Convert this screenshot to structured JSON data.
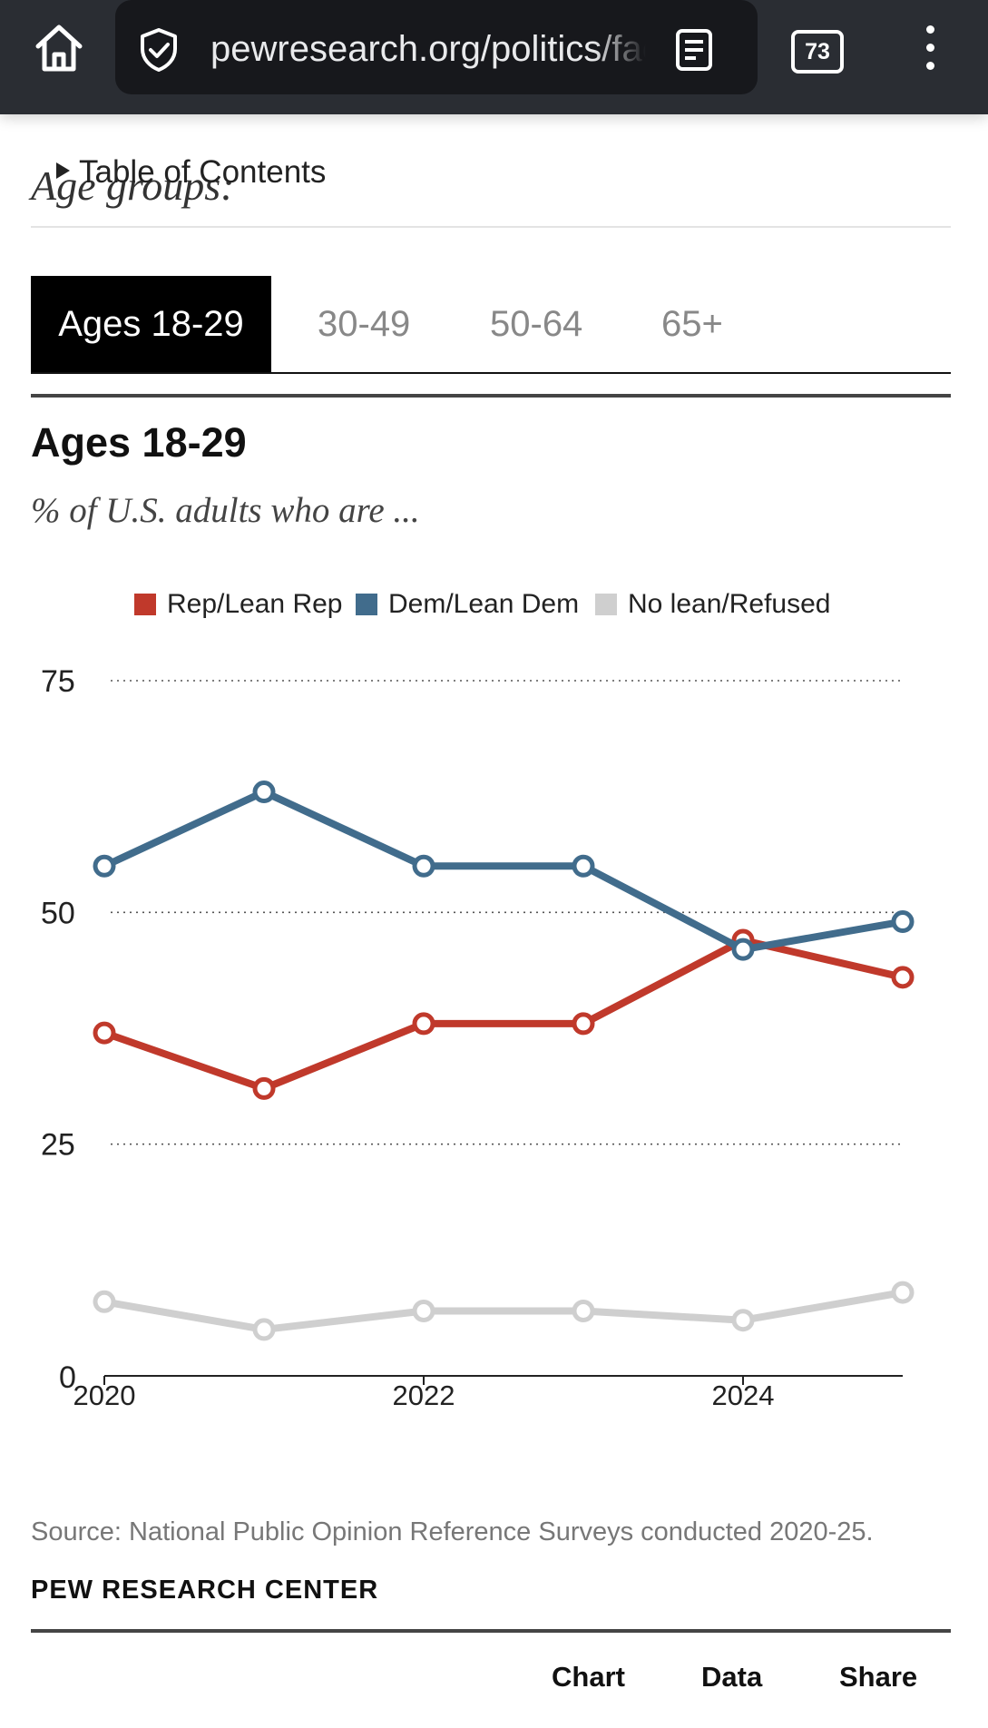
{
  "browser": {
    "url": "pewresearch.org/politics/fact-sheet/party-affiliation",
    "tab_count": "73"
  },
  "page": {
    "heading_behind": "Age groups:",
    "toc_label": "Table of Contents"
  },
  "tabs": [
    {
      "label": "Ages 18-29",
      "active": true
    },
    {
      "label": "30-49",
      "active": false
    },
    {
      "label": "50-64",
      "active": false
    },
    {
      "label": "65+",
      "active": false
    }
  ],
  "chart_data": {
    "type": "line",
    "title": "Ages 18-29",
    "subtitle": "% of U.S. adults who are ...",
    "x": [
      2020,
      2021,
      2022,
      2023,
      2024,
      2025
    ],
    "xticks": [
      "2020",
      "2022",
      "2024"
    ],
    "ylim": [
      0,
      75
    ],
    "yticks": [
      "0",
      "25",
      "50",
      "75"
    ],
    "grid": true,
    "legend_position": "top",
    "series": [
      {
        "name": "Rep/Lean Rep",
        "color": "#c0392b",
        "values": [
          37,
          31,
          38,
          38,
          47,
          43
        ]
      },
      {
        "name": "Dem/Lean Dem",
        "color": "#416c8c",
        "values": [
          55,
          63,
          55,
          55,
          46,
          49
        ]
      },
      {
        "name": "No lean/Refused",
        "color": "#cfcfcf",
        "values": [
          8,
          5,
          7,
          7,
          6,
          9
        ]
      }
    ]
  },
  "footer": {
    "source": "Source: National Public Opinion Reference Surveys conducted 2020-25.",
    "brand": "PEW RESEARCH CENTER",
    "buttons": {
      "chart": "Chart",
      "data": "Data",
      "share": "Share"
    }
  }
}
